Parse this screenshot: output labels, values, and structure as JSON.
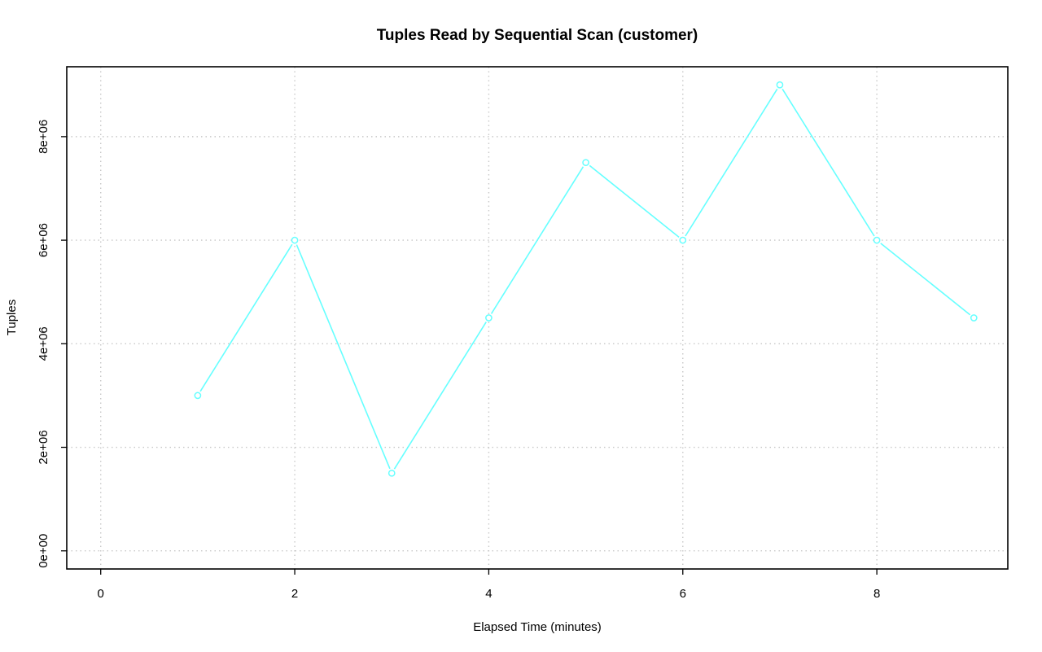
{
  "chart_data": {
    "type": "line",
    "title": "Tuples Read by Sequential Scan (customer)",
    "xlabel": "Elapsed Time (minutes)",
    "ylabel": "Tuples",
    "xlim": [
      -0.35,
      9.35
    ],
    "ylim": [
      -350000,
      9350000
    ],
    "x_ticks": [
      0,
      2,
      4,
      6,
      8
    ],
    "x_tick_labels": [
      "0",
      "2",
      "4",
      "6",
      "8"
    ],
    "y_ticks": [
      0,
      2000000,
      4000000,
      6000000,
      8000000
    ],
    "y_tick_labels": [
      "0e+00",
      "2e+06",
      "4e+06",
      "6e+06",
      "8e+06"
    ],
    "grid": true,
    "series": [
      {
        "color": "#66ffff",
        "marker": "open-circle",
        "x": [
          1,
          2,
          3,
          4,
          5,
          6,
          7,
          8,
          9
        ],
        "y": [
          3000000,
          6000000,
          1500000,
          4500000,
          7500000,
          6000000,
          9000000,
          6000000,
          4500000
        ]
      }
    ]
  }
}
